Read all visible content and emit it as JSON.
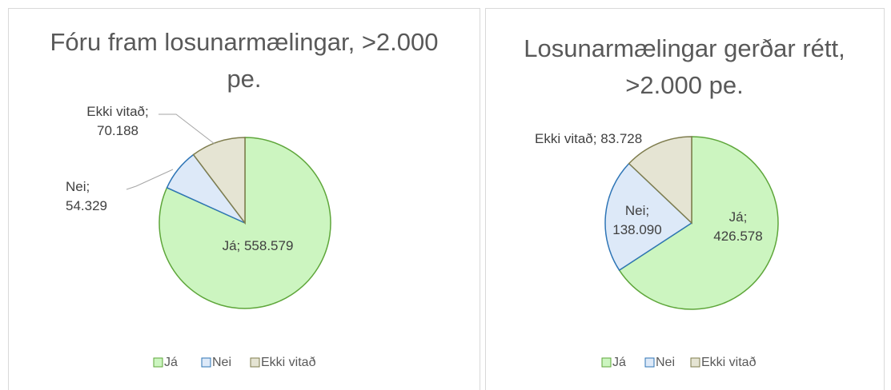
{
  "chart_data": [
    {
      "type": "pie",
      "title": "Fóru fram losunarmælingar, >2.000 pe.",
      "categories": [
        "Já",
        "Nei",
        "Ekki vitað"
      ],
      "values": [
        558579,
        54329,
        70188
      ],
      "value_labels": [
        "Já; 558.579",
        "Nei; 54.329",
        "Ekki vitað; 70.188"
      ],
      "colors": [
        "#ccf5c0",
        "#dde9f8",
        "#e5e4d3"
      ],
      "edge_colors": [
        "#5ea63a",
        "#2e75b6",
        "#7f7d4e"
      ]
    },
    {
      "type": "pie",
      "title": "Losunarmælingar gerðar rétt, >2.000 pe.",
      "categories": [
        "Já",
        "Nei",
        "Ekki vitað"
      ],
      "values": [
        426578,
        138090,
        83728
      ],
      "value_labels": [
        "Já; 426.578",
        "Nei; 138.090",
        "Ekki vitað; 83.728"
      ],
      "colors": [
        "#ccf5c0",
        "#dde9f8",
        "#e5e4d3"
      ],
      "edge_colors": [
        "#5ea63a",
        "#2e75b6",
        "#7f7d4e"
      ]
    }
  ]
}
